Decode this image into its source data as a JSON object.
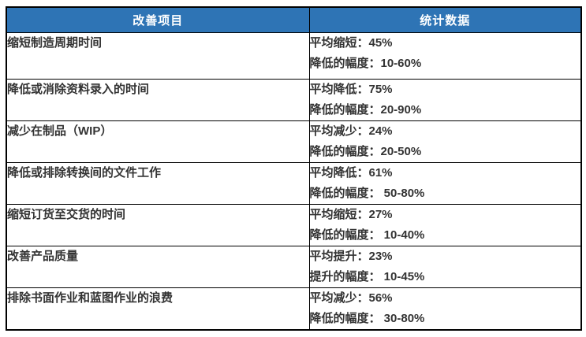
{
  "colors": {
    "page_bg": "#FFFFFF",
    "header_bg": "#2E74B5",
    "header_text": "#FFFFFF",
    "border": "#000000",
    "body_text": "#333333"
  },
  "table": {
    "headers": [
      "改善项目",
      "统计数据"
    ],
    "rows": [
      {
        "item": "缩短制造周期时间",
        "stat_line1": "平均缩短：45%",
        "stat_line2": "降低的幅度：10-60%"
      },
      {
        "item": "降低或消除资料录入的时间",
        "stat_line1": "平均降低：75%",
        "stat_line2": "降低的幅度：20-90%"
      },
      {
        "item": "减少在制品（WIP）",
        "stat_line1": "平均减少：24%",
        "stat_line2": "降低的幅度：20-50%"
      },
      {
        "item": "降低或排除转换间的文件工作",
        "stat_line1": "平均降低：61%",
        "stat_line2": "降低的幅度： 50-80%"
      },
      {
        "item": "缩短订货至交货的时间",
        "stat_line1": "平均缩短：27%",
        "stat_line2": "降低的幅度： 10-40%"
      },
      {
        "item": "改善产品质量",
        "stat_line1": "平均提升：23%",
        "stat_line2": "提升的幅度： 10-45%"
      },
      {
        "item": "排除书面作业和蓝图作业的浪费",
        "stat_line1": "平均减少：56%",
        "stat_line2": "降低的幅度： 30-80%"
      }
    ]
  }
}
